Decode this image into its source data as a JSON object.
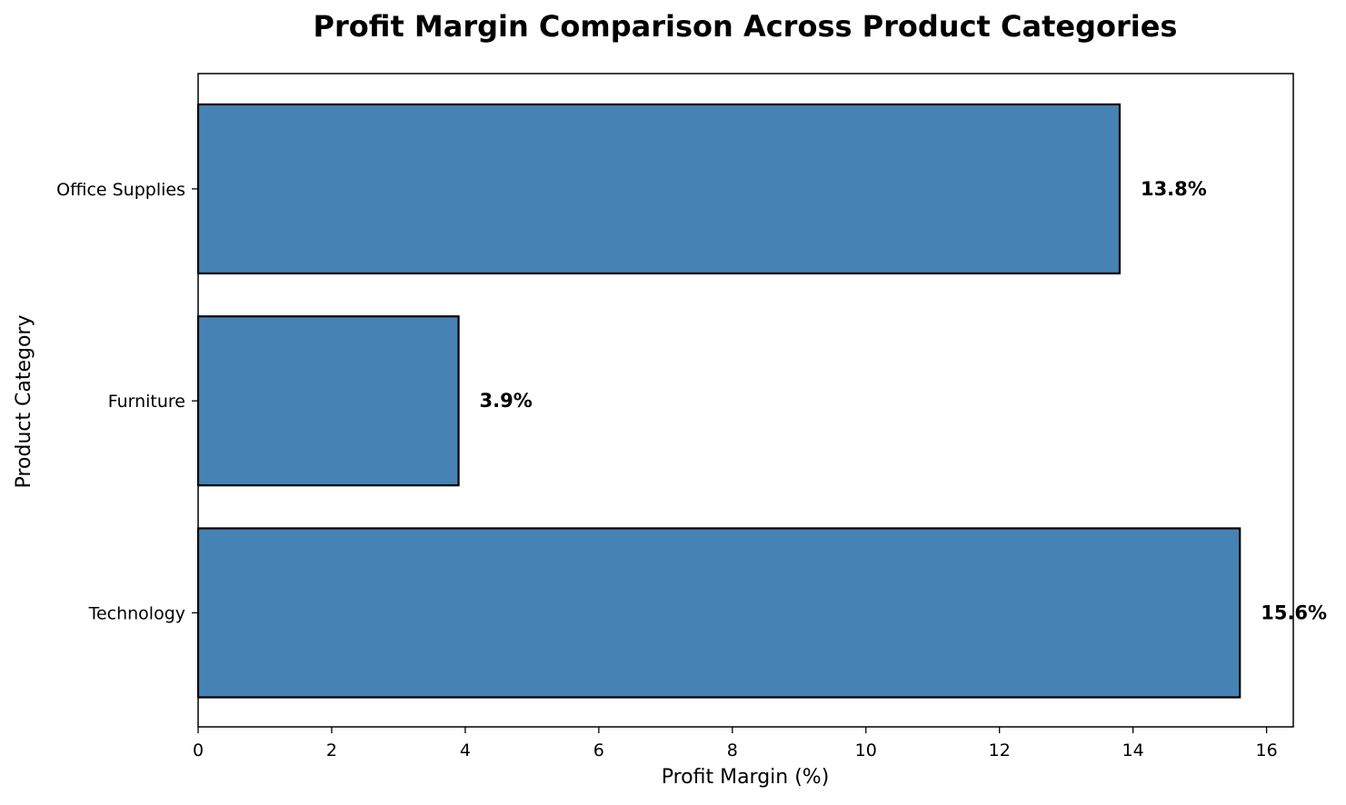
{
  "chart_data": {
    "type": "bar",
    "orientation": "horizontal",
    "title": "Profit Margin Comparison Across Product Categories",
    "xlabel": "Profit Margin (%)",
    "ylabel": "Product Category",
    "categories": [
      "Technology",
      "Furniture",
      "Office Supplies"
    ],
    "values": [
      15.6,
      3.9,
      13.8
    ],
    "data_labels": [
      "15.6%",
      "3.9%",
      "13.8%"
    ],
    "xlim": [
      0,
      16.4
    ],
    "x_ticks": [
      0,
      2,
      4,
      6,
      8,
      10,
      12,
      14,
      16
    ],
    "x_tick_labels": [
      "0",
      "2",
      "4",
      "6",
      "8",
      "10",
      "12",
      "14",
      "16"
    ],
    "grid": false,
    "colors": {
      "bar_fill": "#4682b4",
      "bar_edge": "#000000",
      "axes": "#000000",
      "background": "#ffffff"
    }
  }
}
